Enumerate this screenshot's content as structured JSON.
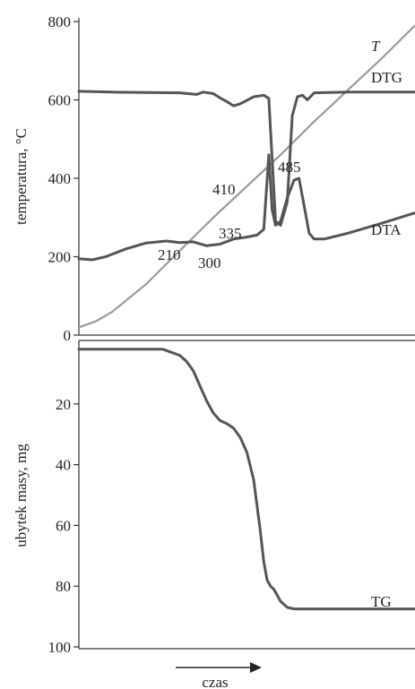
{
  "chart_data": [
    {
      "type": "line",
      "ylabel": "temperatura, °C",
      "ylim": [
        0,
        800
      ],
      "yticks": [
        0,
        200,
        400,
        600,
        800
      ],
      "grid": false,
      "x_range": [
        0,
        100
      ],
      "series": [
        {
          "name": "T",
          "color": "#9a9a9a",
          "x": [
            0,
            5,
            10,
            20,
            30,
            40,
            50,
            60,
            70,
            80,
            90,
            100
          ],
          "y": [
            20,
            35,
            60,
            130,
            215,
            300,
            380,
            460,
            545,
            625,
            705,
            790
          ]
        },
        {
          "name": "DTG",
          "color": "#555555",
          "x": [
            0,
            10,
            20,
            30,
            35,
            37,
            40,
            42,
            44,
            46,
            48,
            52,
            55,
            56.5,
            57.5,
            58.5,
            60,
            62,
            63.5,
            65,
            66.5,
            68,
            70,
            80,
            90,
            100
          ],
          "y": [
            622,
            620,
            619,
            618,
            614,
            620,
            616,
            605,
            596,
            585,
            590,
            608,
            612,
            604,
            450,
            290,
            280,
            340,
            560,
            608,
            612,
            600,
            618,
            620,
            620,
            620
          ]
        },
        {
          "name": "DTA",
          "color": "#555555",
          "x": [
            0,
            4,
            8,
            14,
            20,
            26,
            30,
            34,
            38,
            42,
            46,
            50,
            53,
            55,
            56.5,
            57.5,
            58.5,
            60,
            62,
            64,
            65.5,
            67,
            68.5,
            70,
            73,
            80,
            90,
            100
          ],
          "y": [
            195,
            192,
            200,
            220,
            235,
            240,
            236,
            238,
            228,
            232,
            245,
            250,
            255,
            270,
            460,
            320,
            280,
            290,
            350,
            395,
            400,
            330,
            260,
            245,
            245,
            260,
            285,
            312
          ]
        }
      ],
      "annotations": [
        {
          "text": "T",
          "style": "italic"
        },
        {
          "text": "DTG"
        },
        {
          "text": "DTA"
        },
        {
          "text": "210"
        },
        {
          "text": "300"
        },
        {
          "text": "335"
        },
        {
          "text": "410"
        },
        {
          "text": "485"
        }
      ]
    },
    {
      "type": "line",
      "ylabel": "ubytek masy, mg",
      "ylim": [
        100,
        0
      ],
      "yticks": [
        20,
        40,
        60,
        80,
        100
      ],
      "grid": false,
      "xlabel": "czas",
      "x_range": [
        0,
        100
      ],
      "series": [
        {
          "name": "TG",
          "color": "#555555",
          "x": [
            0,
            10,
            20,
            25,
            30,
            32,
            34,
            36,
            38,
            40,
            42,
            44,
            46,
            48,
            50,
            52,
            54,
            55,
            56,
            57,
            58,
            59,
            60,
            62,
            64,
            66,
            70,
            80,
            90,
            100
          ],
          "y": [
            2,
            2,
            2,
            2,
            4,
            6,
            9,
            14,
            19,
            23,
            25.5,
            26.5,
            28,
            31,
            36,
            45,
            62,
            72,
            78,
            80,
            81,
            83,
            85,
            87,
            87.5,
            87.5,
            87.5,
            87.5,
            87.5,
            87.5
          ]
        }
      ],
      "annotations": [
        {
          "text": "TG"
        }
      ]
    }
  ]
}
